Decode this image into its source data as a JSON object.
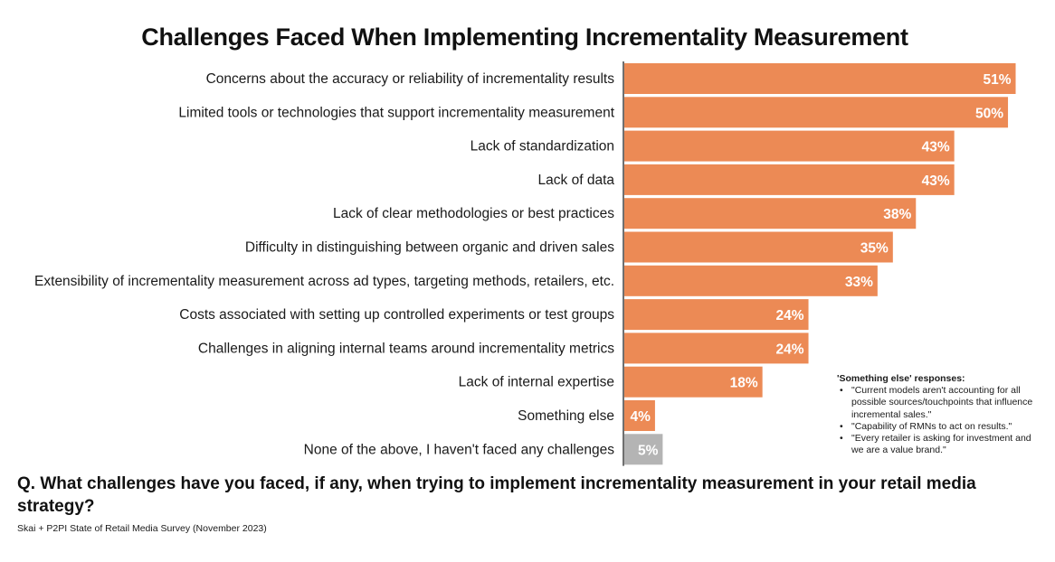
{
  "chart_data": {
    "type": "bar",
    "orientation": "horizontal",
    "title": "Challenges Faced When Implementing Incrementality Measurement",
    "categories": [
      "Concerns about the accuracy or reliability of incrementality results",
      "Limited tools or technologies that support incrementality measurement",
      "Lack of standardization",
      "Lack of data",
      "Lack of clear methodologies or best practices",
      "Difficulty in distinguishing between organic and driven sales",
      "Extensibility of incrementality measurement across ad types, targeting methods, retailers, etc.",
      "Costs associated with setting up controlled experiments or test groups",
      "Challenges in aligning internal teams around incrementality metrics",
      "Lack of internal expertise",
      "Something else",
      "None of the above, I haven't faced any challenges"
    ],
    "values": [
      51,
      50,
      43,
      43,
      38,
      35,
      33,
      24,
      24,
      18,
      4,
      5
    ],
    "value_labels": [
      "51%",
      "50%",
      "43%",
      "43%",
      "38%",
      "35%",
      "33%",
      "24%",
      "24%",
      "18%",
      "4%",
      "5%"
    ],
    "colors": [
      "#EC8A55",
      "#EC8A55",
      "#EC8A55",
      "#EC8A55",
      "#EC8A55",
      "#EC8A55",
      "#EC8A55",
      "#EC8A55",
      "#EC8A55",
      "#EC8A55",
      "#EC8A55",
      "#B4B4B4"
    ],
    "xlim": [
      0,
      52
    ],
    "grid": false,
    "legend": "none"
  },
  "note": {
    "title": "'Something else' responses:",
    "items": [
      "\"Current models aren't accounting for all possible sources/touchpoints that influence incremental sales.\"",
      "\"Capability of RMNs to act on results.\"",
      "\"Every retailer is asking for investment and we are a value brand.\""
    ]
  },
  "question": "Q. What challenges have you faced, if any, when trying to implement incrementality measurement in your retail media strategy?",
  "source": "Skai + P2PI State of Retail Media Survey (November 2023)"
}
